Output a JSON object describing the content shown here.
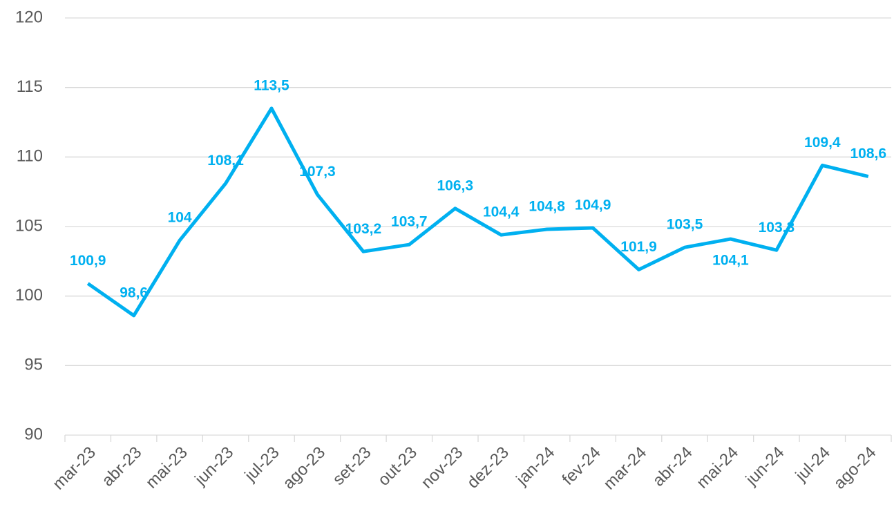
{
  "chart_data": {
    "type": "line",
    "categories": [
      "mar-23",
      "abr-23",
      "mai-23",
      "jun-23",
      "jul-23",
      "ago-23",
      "set-23",
      "out-23",
      "nov-23",
      "dez-23",
      "jan-24",
      "fev-24",
      "mar-24",
      "abr-24",
      "mai-24",
      "jun-24",
      "jul-24",
      "ago-24"
    ],
    "values": [
      100.9,
      98.6,
      104,
      108.1,
      113.5,
      107.3,
      103.2,
      103.7,
      106.3,
      104.4,
      104.8,
      104.9,
      101.9,
      103.5,
      104.1,
      103.3,
      109.4,
      108.6
    ],
    "value_labels": [
      "100,9",
      "98,6",
      "104",
      "108,1",
      "113,5",
      "107,3",
      "103,2",
      "103,7",
      "106,3",
      "104,4",
      "104,8",
      "104,9",
      "101,9",
      "103,5",
      "104,1",
      "103,3",
      "109,4",
      "108,6"
    ],
    "color": "#00b0f0",
    "ylim": [
      90,
      120
    ],
    "yticks": [
      90,
      95,
      100,
      105,
      110,
      115,
      120
    ],
    "grid": true
  }
}
